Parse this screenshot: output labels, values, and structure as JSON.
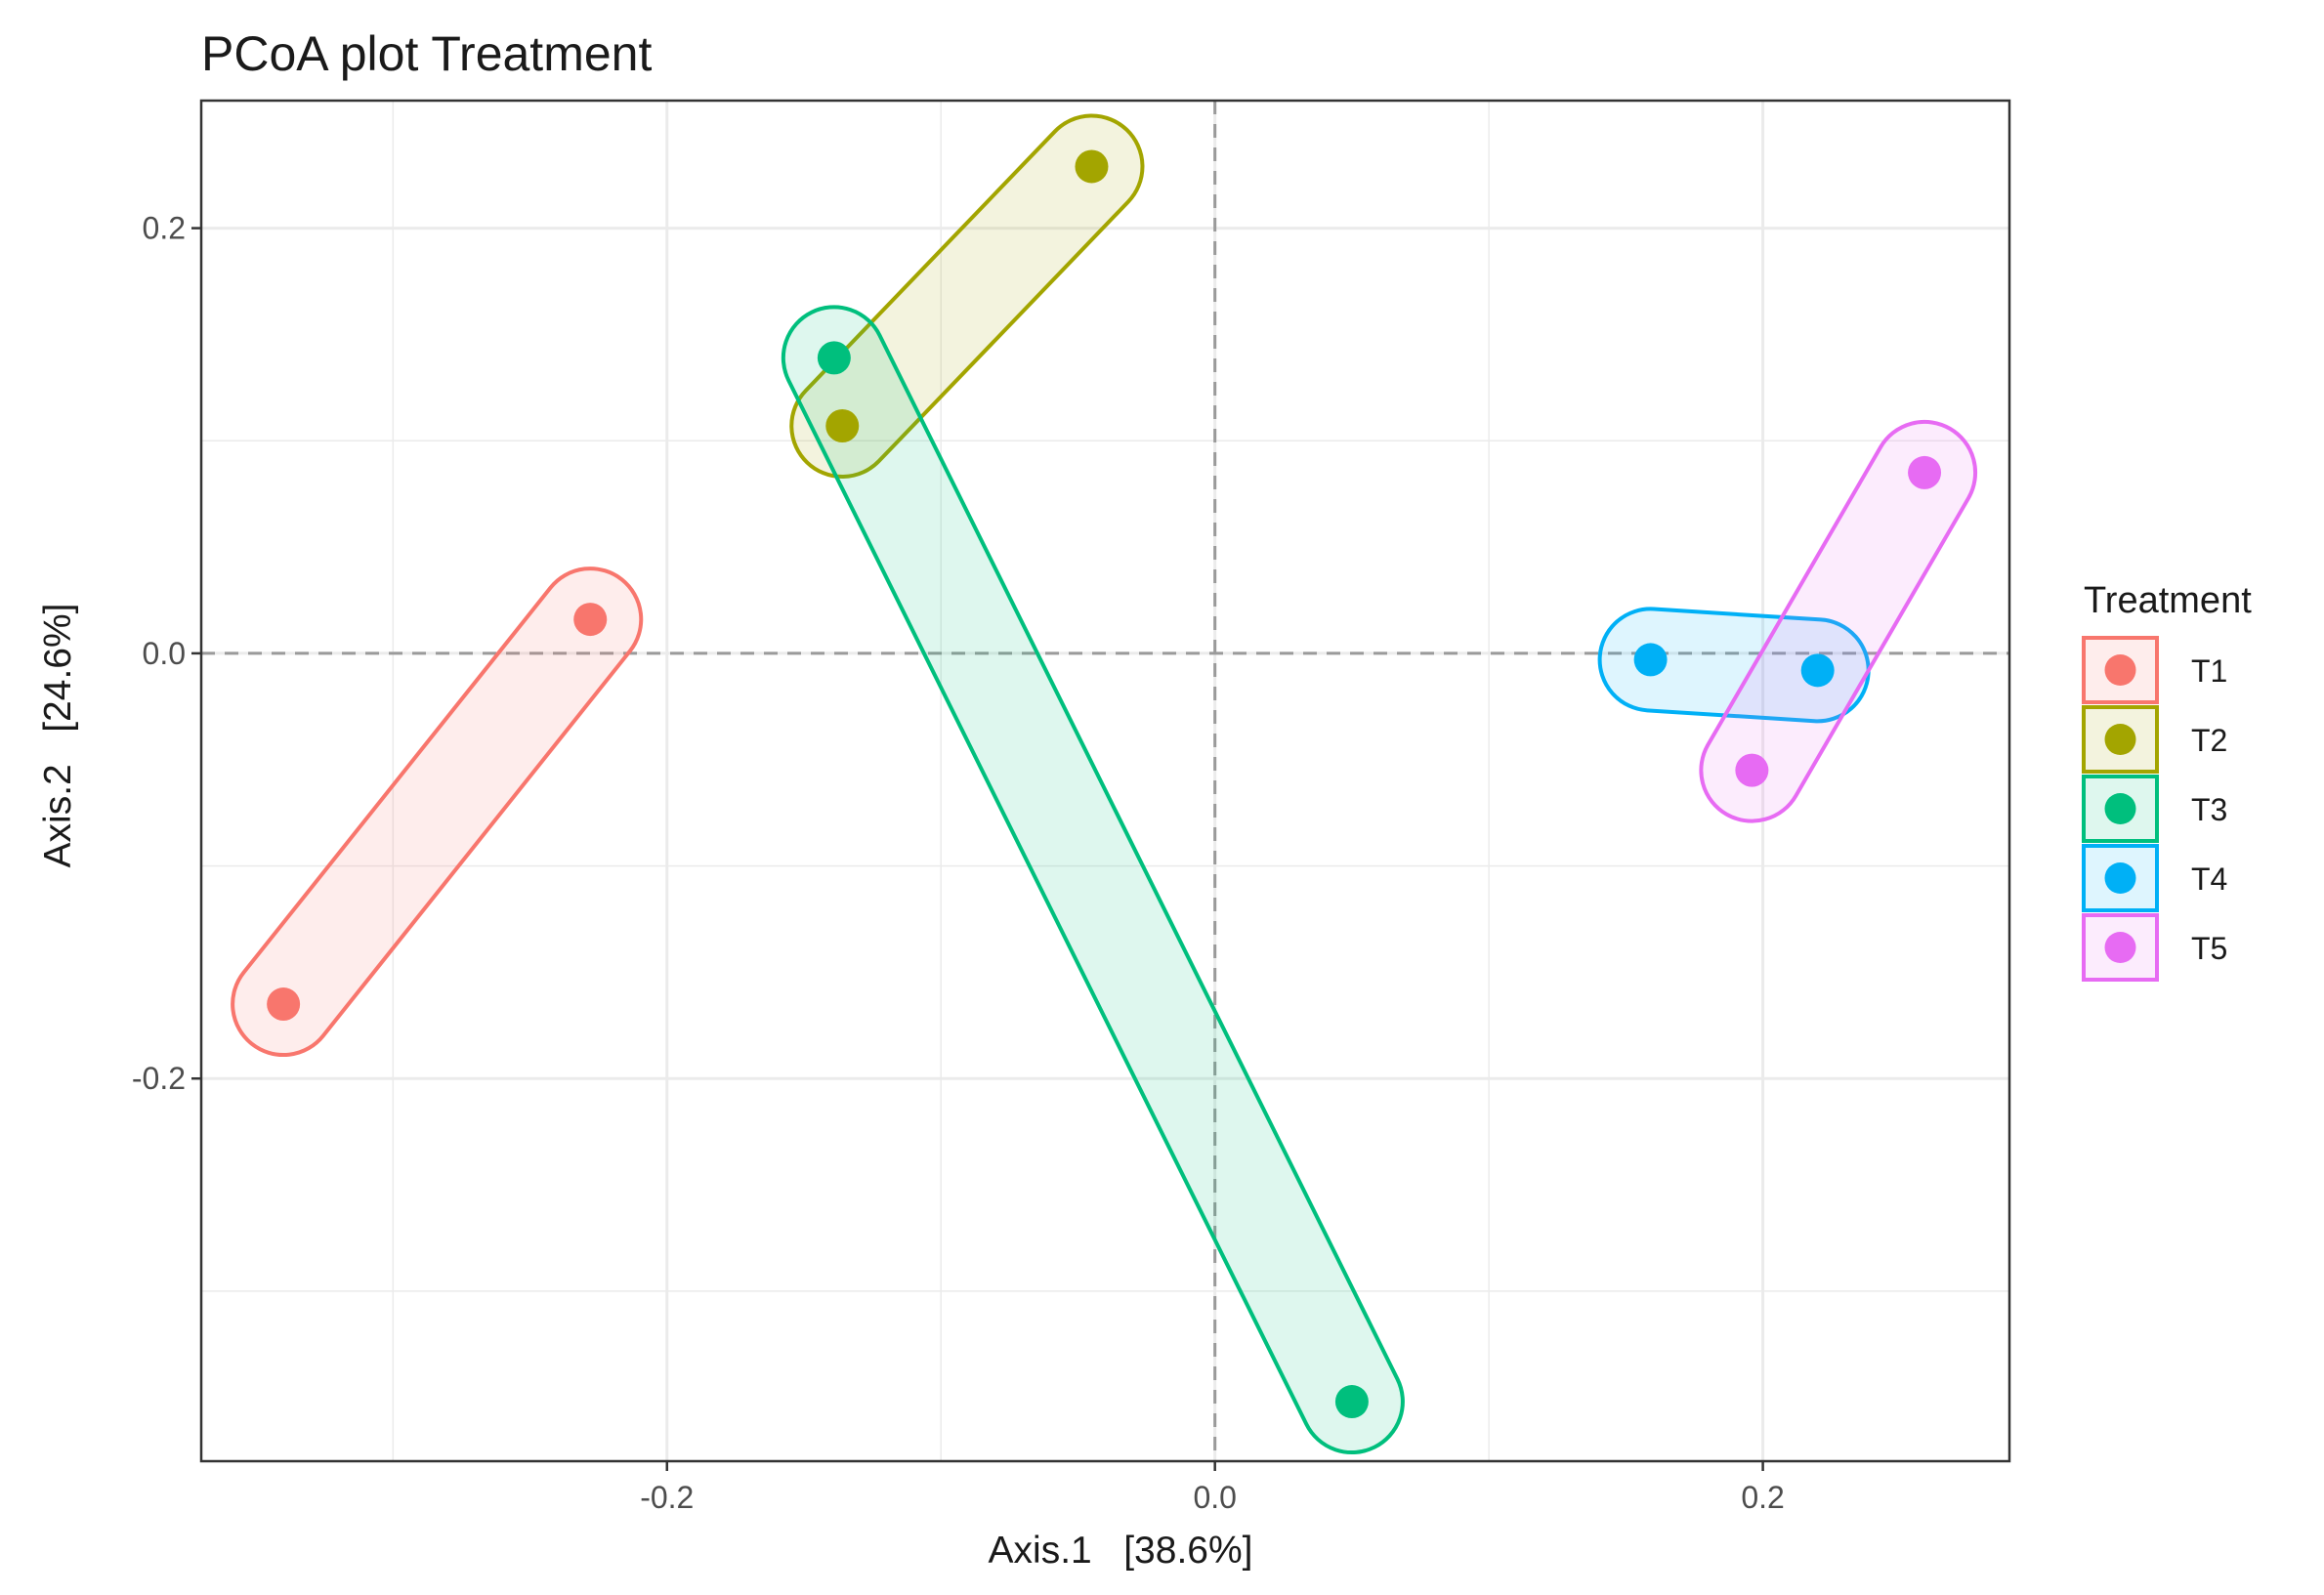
{
  "chart_data": {
    "type": "scatter",
    "title": "PCoA plot Treatment",
    "xlabel": "Axis.1   [38.6%]",
    "ylabel": "Axis.2   [24.6%]",
    "xlim": [
      -0.37,
      0.29
    ],
    "ylim": [
      -0.38,
      0.26
    ],
    "xticks": [
      -0.2,
      0.0,
      0.2
    ],
    "yticks": [
      -0.2,
      0.0,
      0.2
    ],
    "xtick_labels": [
      "-0.2",
      "0.0",
      "0.2"
    ],
    "ytick_labels": [
      "-0.2",
      "0.0",
      "0.2"
    ],
    "grid": true,
    "reference_lines": {
      "x": 0,
      "y": 0
    },
    "legend_title": "Treatment",
    "legend_position": "right",
    "series": [
      {
        "name": "T1",
        "color": "#F8766D",
        "points": [
          [
            -0.228,
            0.016
          ],
          [
            -0.34,
            -0.165
          ]
        ]
      },
      {
        "name": "T2",
        "color": "#A3A500",
        "points": [
          [
            -0.045,
            0.229
          ],
          [
            -0.136,
            0.107
          ]
        ]
      },
      {
        "name": "T3",
        "color": "#00BF7D",
        "points": [
          [
            -0.139,
            0.139
          ],
          [
            0.05,
            -0.352
          ]
        ]
      },
      {
        "name": "T4",
        "color": "#00B0F6",
        "points": [
          [
            0.159,
            -0.003
          ],
          [
            0.22,
            -0.008
          ]
        ]
      },
      {
        "name": "T5",
        "color": "#E76BF3",
        "points": [
          [
            0.259,
            0.085
          ],
          [
            0.196,
            -0.055
          ]
        ]
      }
    ]
  }
}
